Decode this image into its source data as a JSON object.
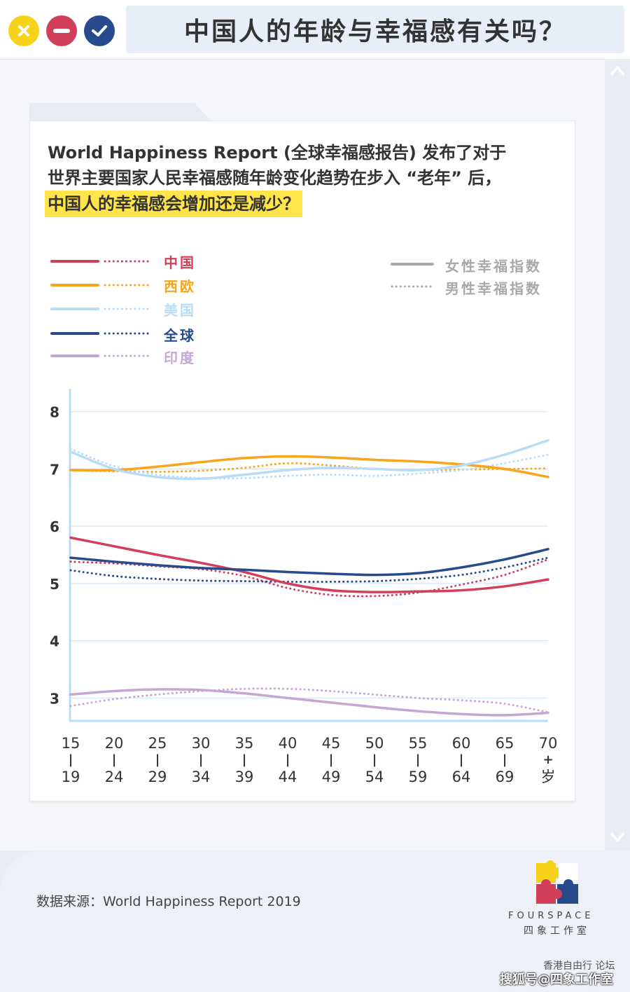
{
  "header": {
    "title": "中国人的年龄与幸福感有关吗？",
    "buttons": {
      "close": "close",
      "minimize": "minimize",
      "confirm": "confirm"
    }
  },
  "card": {
    "headline_line1": "World Happiness Report (全球幸福感报告) 发布了对于",
    "headline_line2": "世界主要国家人民幸福感随年龄变化趋势在步入 “老年” 后，",
    "headline_line3": "中国人的幸福感会增加还是减少？"
  },
  "legend": {
    "items": [
      {
        "label": "中国",
        "color": "#d23f5b"
      },
      {
        "label": "西欧",
        "color": "#f7a51c"
      },
      {
        "label": "美国",
        "color": "#b8dcf5"
      },
      {
        "label": "全球",
        "color": "#284b8e"
      },
      {
        "label": "印度",
        "color": "#c6a7d2"
      }
    ],
    "style_female": "女性幸福指数",
    "style_male": "男性幸福指数",
    "style_color": "#a9a9a9"
  },
  "chart_data": {
    "type": "line",
    "x_top": [
      "15",
      "20",
      "25",
      "30",
      "35",
      "40",
      "45",
      "50",
      "55",
      "60",
      "65",
      "70"
    ],
    "x_mid": [
      "|",
      "|",
      "|",
      "|",
      "|",
      "|",
      "|",
      "|",
      "|",
      "|",
      "|",
      "+"
    ],
    "x_bottom": [
      "19",
      "24",
      "29",
      "34",
      "39",
      "44",
      "49",
      "54",
      "59",
      "64",
      "69",
      "岁"
    ],
    "yticks": [
      "8",
      "7",
      "6",
      "5",
      "4",
      "3"
    ],
    "ylim": [
      2.6,
      8.4
    ],
    "grid": "horizontal",
    "series": [
      {
        "name": "中国",
        "style": "solid",
        "color": "#d23f5b",
        "values": [
          5.8,
          5.65,
          5.5,
          5.36,
          5.2,
          5.0,
          4.88,
          4.85,
          4.86,
          4.88,
          4.95,
          5.07
        ]
      },
      {
        "name": "中国",
        "style": "dotted",
        "color": "#d23f5b",
        "values": [
          5.38,
          5.35,
          5.3,
          5.25,
          5.13,
          4.92,
          4.8,
          4.78,
          4.84,
          4.98,
          5.15,
          5.42
        ]
      },
      {
        "name": "西欧",
        "style": "solid",
        "color": "#f7a51c",
        "values": [
          6.98,
          6.98,
          7.04,
          7.12,
          7.19,
          7.22,
          7.2,
          7.16,
          7.13,
          7.08,
          7.0,
          6.86
        ]
      },
      {
        "name": "西欧",
        "style": "dotted",
        "color": "#f7a51c",
        "values": [
          6.98,
          6.96,
          6.95,
          6.97,
          7.02,
          7.1,
          7.06,
          7.0,
          6.98,
          6.99,
          7.0,
          7.01
        ]
      },
      {
        "name": "美国",
        "style": "solid",
        "color": "#b8dcf5",
        "values": [
          7.3,
          7.0,
          6.86,
          6.83,
          6.9,
          6.98,
          7.02,
          7.0,
          6.98,
          7.06,
          7.25,
          7.5
        ]
      },
      {
        "name": "美国",
        "style": "dotted",
        "color": "#b8dcf5",
        "values": [
          7.35,
          7.05,
          6.9,
          6.84,
          6.84,
          6.88,
          6.9,
          6.88,
          6.92,
          6.98,
          7.1,
          7.25
        ]
      },
      {
        "name": "全球",
        "style": "solid",
        "color": "#284b8e",
        "values": [
          5.45,
          5.38,
          5.32,
          5.27,
          5.24,
          5.2,
          5.17,
          5.15,
          5.18,
          5.28,
          5.42,
          5.6
        ]
      },
      {
        "name": "全球",
        "style": "dotted",
        "color": "#284b8e",
        "values": [
          5.23,
          5.13,
          5.08,
          5.05,
          5.04,
          5.03,
          5.03,
          5.04,
          5.08,
          5.15,
          5.28,
          5.45
        ]
      },
      {
        "name": "印度",
        "style": "solid",
        "color": "#c6a7d2",
        "values": [
          3.06,
          3.12,
          3.15,
          3.14,
          3.08,
          3.0,
          2.92,
          2.84,
          2.77,
          2.72,
          2.7,
          2.74
        ]
      },
      {
        "name": "印度",
        "style": "dotted",
        "color": "#c6a7d2",
        "values": [
          2.86,
          2.98,
          3.06,
          3.12,
          3.16,
          3.16,
          3.12,
          3.06,
          3.0,
          2.96,
          2.9,
          2.75
        ]
      }
    ]
  },
  "footer": {
    "source": "数据来源：World Happiness Report 2019",
    "brand": "FOURSPACE",
    "brand_cn": "四象工作室",
    "watermark1": "香港自由行 论坛",
    "watermark2": "搜狐号@四象工作室"
  }
}
